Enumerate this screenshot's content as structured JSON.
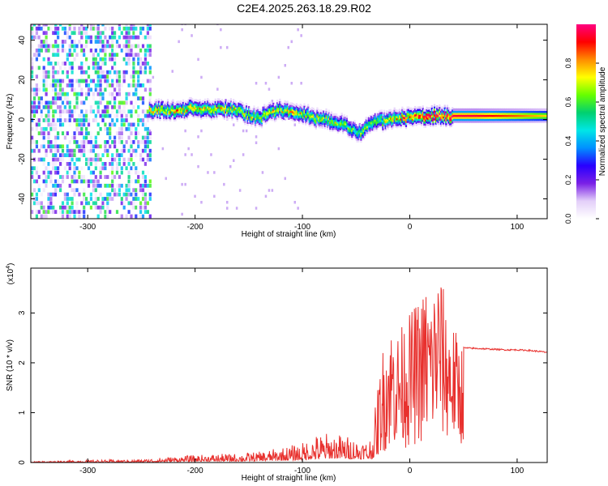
{
  "title": "C2E4.2025.263.18.29.R02",
  "chart_data": [
    {
      "type": "heatmap",
      "xlabel": "Height of straight line (km)",
      "ylabel": "Frequency (Hz)",
      "xlim": [
        -353,
        128
      ],
      "ylim": [
        -50,
        48
      ],
      "x_ticks": [
        -300,
        -200,
        -100,
        0,
        100
      ],
      "y_ticks": [
        -40,
        -20,
        0,
        20,
        40
      ],
      "colorbar": {
        "label": "Normalized spectral amplitude",
        "range": [
          0,
          1
        ],
        "ticks": [
          "0.0",
          "0.2",
          "0.4",
          "0.6",
          "0.8"
        ],
        "tick_values": [
          0,
          0.2,
          0.4,
          0.6,
          0.8
        ],
        "colors": [
          "#ffffff",
          "#e3cff9",
          "#7a20e6",
          "#2800ff",
          "#0090ff",
          "#00e6e6",
          "#00d070",
          "#66ff00",
          "#ffff00",
          "#ff8c00",
          "#ff0000",
          "#ff0080"
        ]
      },
      "noise_region": {
        "x": [
          -353,
          -243
        ],
        "level": 0.35
      },
      "signal_track": {
        "x": [
          -243,
          -230,
          -215,
          -205,
          -195,
          -185,
          -175,
          -160,
          -150,
          -140,
          -130,
          -120,
          -110,
          -100,
          -90,
          -80,
          -70,
          -60,
          -50,
          -45,
          -40,
          -30,
          -20,
          -10,
          0,
          10,
          20,
          40,
          60,
          80,
          100,
          128
        ],
        "freq": [
          5,
          5,
          4,
          6,
          5,
          5,
          6,
          4,
          2,
          1,
          4,
          5,
          4,
          3,
          1,
          0,
          -1,
          -3,
          -6,
          -7,
          -3,
          -1,
          0,
          1,
          1,
          1.5,
          2,
          2,
          2,
          2,
          2,
          2
        ],
        "amplitude": [
          0.7,
          0.7,
          0.75,
          0.75,
          0.75,
          0.7,
          0.7,
          0.7,
          0.65,
          0.65,
          0.7,
          0.7,
          0.7,
          0.7,
          0.65,
          0.65,
          0.65,
          0.6,
          0.55,
          0.6,
          0.6,
          0.6,
          0.7,
          0.75,
          0.8,
          0.9,
          0.95,
          0.95,
          0.95,
          0.9,
          0.85,
          0.75
        ]
      }
    },
    {
      "type": "line",
      "xlabel": "Height of straight line (km)",
      "ylabel": "SNR (10 * v/v)",
      "multiplier_label": "(x10",
      "multiplier_exp": "4",
      "xlim": [
        -353,
        128
      ],
      "ylim": [
        0,
        3.9
      ],
      "x_ticks": [
        -300,
        -200,
        -100,
        0,
        100
      ],
      "y_ticks": [
        0,
        1,
        2,
        3
      ],
      "series": [
        {
          "color": "#e8312e",
          "x": [
            -353,
            -300,
            -250,
            -240,
            -220,
            -200,
            -180,
            -160,
            -140,
            -120,
            -100,
            -90,
            -80,
            -70,
            -60,
            -50,
            -40,
            -35,
            -30,
            -25,
            -20,
            -15,
            -10,
            -5,
            0,
            5,
            10,
            15,
            20,
            25,
            28,
            30,
            35,
            40,
            45,
            50,
            60,
            70,
            80,
            90,
            100,
            110,
            120,
            128
          ],
          "y": [
            0.01,
            0.02,
            0.03,
            0.04,
            0.07,
            0.09,
            0.1,
            0.1,
            0.12,
            0.15,
            0.2,
            0.26,
            0.3,
            0.32,
            0.3,
            0.28,
            0.25,
            0.3,
            0.7,
            1.3,
            1.6,
            1.9,
            1.8,
            2.0,
            1.9,
            2.2,
            2.4,
            2.6,
            2.9,
            3.1,
            3.5,
            3.0,
            2.8,
            2.6,
            2.45,
            2.3,
            2.29,
            2.28,
            2.27,
            2.26,
            2.26,
            2.25,
            2.23,
            2.21
          ],
          "envelope": [
            0.02,
            0.05,
            0.06,
            0.08,
            0.12,
            0.15,
            0.17,
            0.18,
            0.22,
            0.3,
            0.4,
            0.55,
            0.6,
            0.6,
            0.55,
            0.5,
            0.45,
            0.6,
            1.5,
            2.3,
            2.7,
            2.8,
            2.6,
            2.9,
            3.0,
            3.2,
            3.3,
            3.6,
            3.3,
            3.9,
            3.9,
            3.7,
            3.0,
            2.8,
            2.55,
            2.38,
            2.33,
            2.32,
            2.31,
            2.3,
            2.29,
            2.28,
            2.26,
            2.23
          ]
        }
      ]
    }
  ]
}
